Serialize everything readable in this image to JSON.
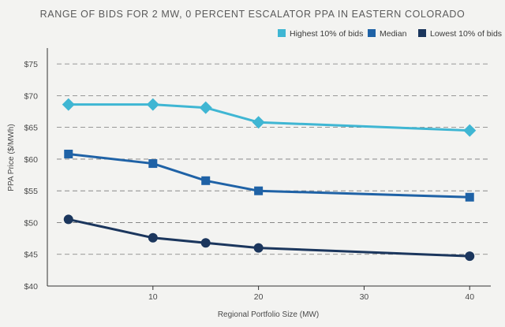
{
  "chart_data": {
    "type": "line",
    "title": "RANGE OF BIDS FOR 2 MW, 0 PERCENT ESCALATOR PPA IN EASTERN COLORADO",
    "xlabel": "Regional Portfolio Size (MW)",
    "ylabel": "PPA Price ($/MWh)",
    "xlim": [
      0,
      42
    ],
    "ylim": [
      40,
      77
    ],
    "x_ticks": [
      10,
      20,
      30,
      40
    ],
    "y_ticks": [
      40,
      45,
      50,
      55,
      60,
      65,
      70,
      75
    ],
    "y_tick_labels": [
      "$40",
      "$45",
      "$50",
      "$55",
      "$60",
      "$65",
      "$70",
      "$75"
    ],
    "grid": "horizontal dashed",
    "legend_position": "top-right",
    "series": [
      {
        "name": "Highest 10% of bids",
        "color": "#3fb6d3",
        "marker": "diamond",
        "x": [
          2,
          10,
          15,
          20,
          40
        ],
        "y": [
          68.6,
          68.6,
          68.1,
          65.8,
          64.5
        ]
      },
      {
        "name": "Median",
        "color": "#1f62a6",
        "marker": "square",
        "x": [
          2,
          10,
          15,
          20,
          40
        ],
        "y": [
          60.8,
          59.3,
          56.6,
          55.0,
          54.0
        ]
      },
      {
        "name": "Lowest 10% of bids",
        "color": "#1b365d",
        "marker": "circle",
        "x": [
          2,
          10,
          15,
          20,
          40
        ],
        "y": [
          50.5,
          47.6,
          46.8,
          46.0,
          44.7
        ]
      }
    ]
  }
}
